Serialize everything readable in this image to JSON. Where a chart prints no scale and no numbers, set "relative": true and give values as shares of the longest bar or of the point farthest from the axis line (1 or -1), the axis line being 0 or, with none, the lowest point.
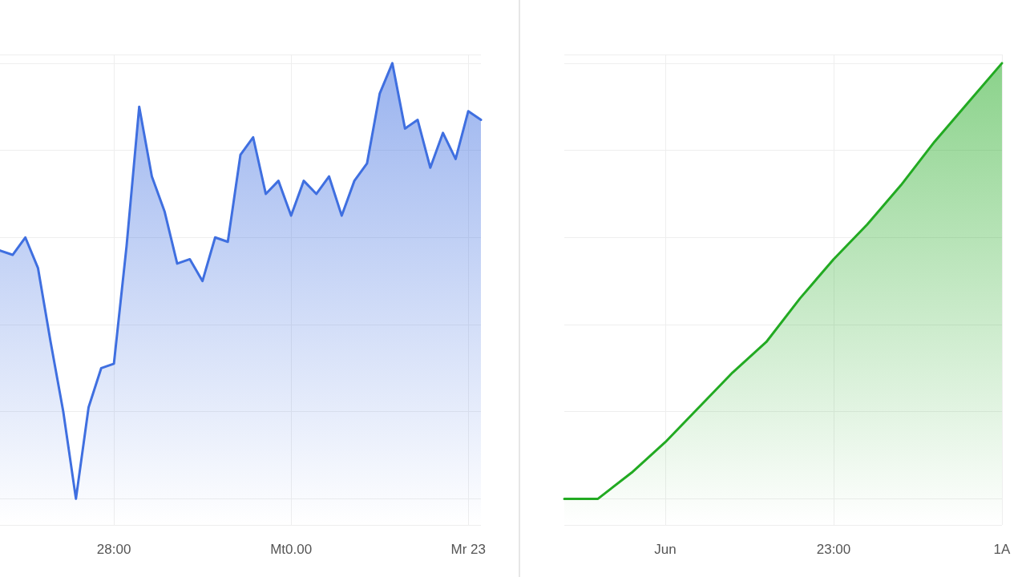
{
  "chart_data": [
    {
      "type": "area",
      "relative": true,
      "grid": true,
      "marker": "none",
      "line_style": "solid",
      "categories": [
        null,
        null,
        null,
        null,
        null,
        null,
        null,
        null,
        null,
        "28:00",
        null,
        null,
        null,
        null,
        null,
        null,
        null,
        null,
        null,
        null,
        null,
        null,
        null,
        "Mt0.00",
        null,
        null,
        null,
        null,
        null,
        null,
        null,
        null,
        null,
        null,
        null,
        null,
        null,
        "Mr 23",
        null
      ],
      "series": [
        {
          "color": "#3f6fe0",
          "values": [
            0.57,
            0.56,
            0.6,
            0.53,
            0.36,
            0.2,
            0.0,
            0.21,
            0.3,
            0.31,
            0.58,
            0.9,
            0.74,
            0.66,
            0.54,
            0.55,
            0.5,
            0.6,
            0.59,
            0.79,
            0.83,
            0.7,
            0.73,
            0.65,
            0.73,
            0.7,
            0.74,
            0.65,
            0.73,
            0.77,
            0.93,
            1.0,
            0.85,
            0.87,
            0.76,
            0.84,
            0.78,
            0.89,
            0.87
          ]
        }
      ]
    },
    {
      "type": "area",
      "relative": true,
      "grid": true,
      "marker": "none",
      "line_style": "solid",
      "categories": [
        null,
        null,
        null,
        "Jun",
        null,
        null,
        null,
        null,
        "23:00",
        null,
        null,
        null,
        null,
        "1A"
      ],
      "series": [
        {
          "color": "#22aa22",
          "values": [
            0,
            0,
            0.06,
            0.13,
            0.21,
            0.29,
            0.36,
            0.46,
            0.55,
            0.63,
            0.72,
            0.82,
            0.91,
            1.0
          ]
        }
      ]
    }
  ]
}
